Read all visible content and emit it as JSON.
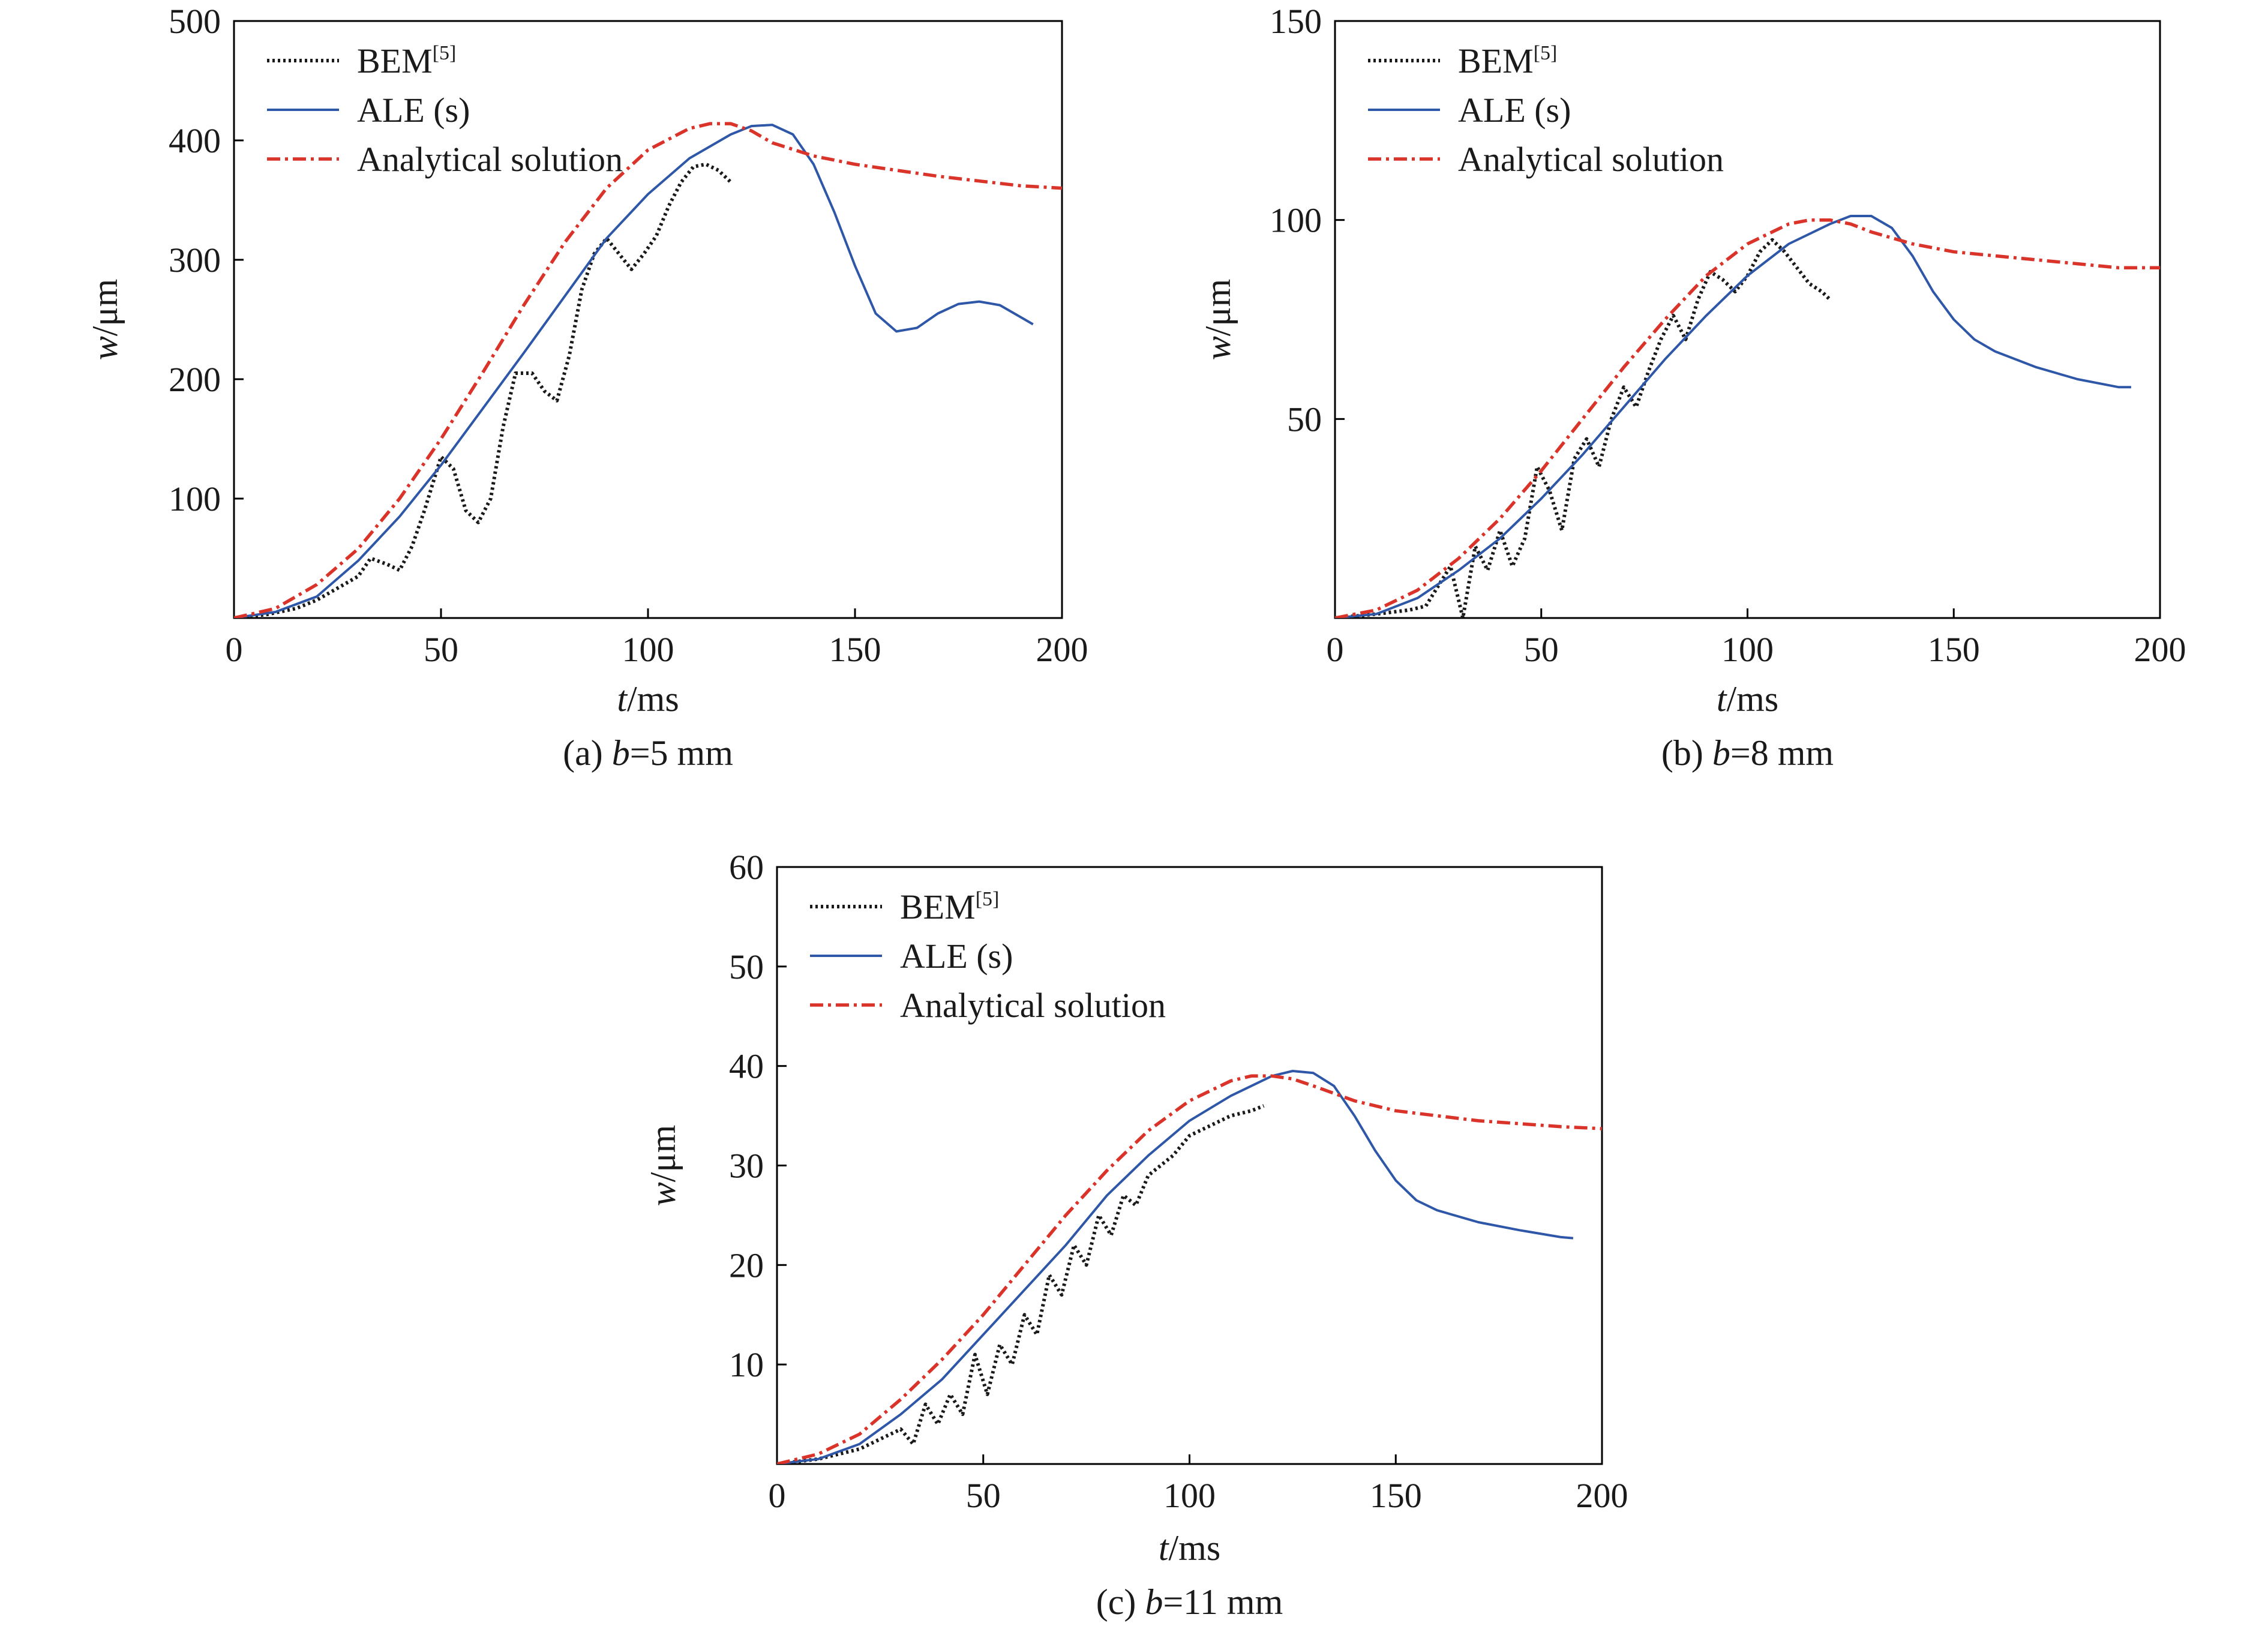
{
  "chart_data": [
    {
      "type": "line",
      "caption_prefix": "(a) ",
      "caption_var": "b",
      "caption_rest": "=5 mm",
      "xlabel_var": "t",
      "xlabel_unit": "/ms",
      "ylabel_var": "w",
      "ylabel_unit": "/μm",
      "xlim": [
        0,
        200
      ],
      "ylim": [
        0,
        500
      ],
      "xticks": [
        0,
        50,
        100,
        150,
        200
      ],
      "yticks": [
        100,
        200,
        300,
        400,
        500
      ],
      "grid": false,
      "legend_position": "top-left",
      "series": [
        {
          "name": "BEM",
          "name_sup": "[5]",
          "style": "dotted",
          "color": "#1a1a1a",
          "x": [
            0,
            8,
            15,
            20,
            25,
            30,
            33,
            37,
            40,
            43,
            46,
            50,
            53,
            56,
            59,
            62,
            65,
            68,
            72,
            75,
            78,
            81,
            84,
            87,
            90,
            93,
            96,
            99,
            102,
            105,
            108,
            111,
            114,
            117,
            120
          ],
          "y": [
            0,
            3,
            8,
            15,
            25,
            35,
            50,
            45,
            40,
            60,
            90,
            135,
            125,
            90,
            80,
            100,
            160,
            205,
            205,
            190,
            182,
            220,
            275,
            305,
            318,
            305,
            292,
            305,
            320,
            345,
            365,
            378,
            380,
            375,
            365
          ]
        },
        {
          "name": "ALE (s)",
          "name_sup": "",
          "style": "solid",
          "color": "#2E57A8",
          "x": [
            0,
            10,
            20,
            30,
            40,
            50,
            60,
            70,
            80,
            90,
            100,
            110,
            120,
            125,
            130,
            135,
            140,
            145,
            150,
            155,
            160,
            165,
            170,
            175,
            180,
            185,
            190,
            193
          ],
          "y": [
            0,
            5,
            18,
            48,
            85,
            128,
            175,
            222,
            270,
            318,
            355,
            385,
            405,
            412,
            413,
            405,
            380,
            340,
            295,
            255,
            240,
            243,
            255,
            263,
            265,
            262,
            252,
            246
          ]
        },
        {
          "name": "Analytical solution",
          "name_sup": "",
          "style": "dashdot",
          "color": "#D9332A",
          "x": [
            0,
            10,
            20,
            30,
            40,
            50,
            60,
            70,
            80,
            90,
            100,
            110,
            115,
            120,
            125,
            130,
            140,
            150,
            160,
            170,
            180,
            190,
            200
          ],
          "y": [
            0,
            8,
            28,
            58,
            100,
            150,
            205,
            262,
            315,
            360,
            392,
            410,
            414,
            414,
            408,
            398,
            387,
            380,
            375,
            370,
            366,
            362,
            360
          ]
        }
      ]
    },
    {
      "type": "line",
      "caption_prefix": "(b) ",
      "caption_var": "b",
      "caption_rest": "=8 mm",
      "xlabel_var": "t",
      "xlabel_unit": "/ms",
      "ylabel_var": "w",
      "ylabel_unit": "/μm",
      "xlim": [
        0,
        200
      ],
      "ylim": [
        0,
        150
      ],
      "xticks": [
        0,
        50,
        100,
        150,
        200
      ],
      "yticks": [
        50,
        100,
        150
      ],
      "grid": false,
      "legend_position": "top-left",
      "series": [
        {
          "name": "BEM",
          "name_sup": "[5]",
          "style": "dotted",
          "color": "#1a1a1a",
          "x": [
            0,
            10,
            18,
            22,
            25,
            28,
            31,
            34,
            37,
            40,
            43,
            46,
            49,
            52,
            55,
            58,
            61,
            64,
            67,
            70,
            73,
            76,
            79,
            82,
            85,
            88,
            91,
            94,
            97,
            100,
            103,
            106,
            109,
            112,
            115,
            118,
            120
          ],
          "y": [
            0,
            1,
            2,
            3,
            8,
            13,
            0,
            18,
            12,
            22,
            13,
            20,
            38,
            32,
            22,
            40,
            45,
            38,
            50,
            58,
            53,
            62,
            70,
            76,
            70,
            80,
            87,
            85,
            82,
            86,
            92,
            95,
            92,
            88,
            84,
            82,
            80
          ],
          "y_note": ""
        },
        {
          "name": "ALE (s)",
          "name_sup": "",
          "style": "solid",
          "color": "#2E57A8",
          "x": [
            0,
            10,
            20,
            30,
            40,
            50,
            60,
            70,
            80,
            90,
            100,
            110,
            120,
            125,
            130,
            135,
            140,
            145,
            150,
            155,
            160,
            170,
            180,
            190,
            193
          ],
          "y": [
            0,
            1,
            5,
            12,
            20,
            30,
            41,
            53,
            65,
            76,
            86,
            94,
            99,
            101,
            101,
            98,
            91,
            82,
            75,
            70,
            67,
            63,
            60,
            58,
            58
          ]
        },
        {
          "name": "Analytical solution",
          "name_sup": "",
          "style": "dashdot",
          "color": "#D9332A",
          "x": [
            0,
            10,
            20,
            30,
            40,
            50,
            60,
            70,
            80,
            90,
            100,
            110,
            115,
            120,
            125,
            130,
            140,
            150,
            160,
            170,
            180,
            190,
            200
          ],
          "y": [
            0,
            2,
            7,
            15,
            25,
            37,
            50,
            63,
            75,
            86,
            94,
            99,
            100,
            100,
            99,
            97,
            94,
            92,
            91,
            90,
            89,
            88,
            88
          ]
        }
      ]
    },
    {
      "type": "line",
      "caption_prefix": "(c) ",
      "caption_var": "b",
      "caption_rest": "=11 mm",
      "xlabel_var": "t",
      "xlabel_unit": "/ms",
      "ylabel_var": "w",
      "ylabel_unit": "/μm",
      "xlim": [
        0,
        200
      ],
      "ylim": [
        0,
        60
      ],
      "xticks": [
        0,
        50,
        100,
        150,
        200
      ],
      "yticks": [
        10,
        20,
        30,
        40,
        50,
        60
      ],
      "grid": false,
      "legend_position": "top-left",
      "series": [
        {
          "name": "BEM",
          "name_sup": "[5]",
          "style": "dotted",
          "color": "#1a1a1a",
          "x": [
            0,
            10,
            20,
            25,
            30,
            33,
            36,
            39,
            42,
            45,
            48,
            51,
            54,
            57,
            60,
            63,
            66,
            69,
            72,
            75,
            78,
            81,
            84,
            87,
            90,
            93,
            96,
            100,
            105,
            110,
            115,
            118
          ],
          "y": [
            0,
            0.5,
            1.5,
            2.5,
            3.5,
            2,
            6,
            4,
            7,
            5,
            11,
            7,
            12,
            10,
            15,
            13,
            19,
            17,
            22,
            20,
            25,
            23,
            27,
            26,
            29,
            30,
            31,
            33,
            34,
            35,
            35.5,
            36
          ]
        },
        {
          "name": "ALE (s)",
          "name_sup": "",
          "style": "solid",
          "color": "#2E57A8",
          "x": [
            0,
            10,
            20,
            30,
            40,
            50,
            60,
            70,
            80,
            90,
            100,
            110,
            120,
            125,
            130,
            135,
            140,
            145,
            150,
            155,
            160,
            170,
            180,
            190,
            193
          ],
          "y": [
            0,
            0.5,
            2,
            5,
            8.5,
            13,
            17.5,
            22,
            27,
            31,
            34.5,
            37,
            39,
            39.5,
            39.3,
            38,
            35,
            31.5,
            28.5,
            26.5,
            25.5,
            24.3,
            23.5,
            22.8,
            22.7
          ]
        },
        {
          "name": "Analytical solution",
          "name_sup": "",
          "style": "dashdot",
          "color": "#D9332A",
          "x": [
            0,
            10,
            20,
            30,
            40,
            50,
            60,
            70,
            80,
            90,
            100,
            110,
            115,
            120,
            125,
            130,
            140,
            150,
            160,
            170,
            180,
            190,
            200
          ],
          "y": [
            0,
            1,
            3,
            6.5,
            10.5,
            15,
            20,
            25,
            29.5,
            33.5,
            36.5,
            38.5,
            39,
            39,
            38.7,
            38,
            36.5,
            35.5,
            35,
            34.5,
            34.2,
            33.9,
            33.7
          ]
        }
      ]
    }
  ]
}
